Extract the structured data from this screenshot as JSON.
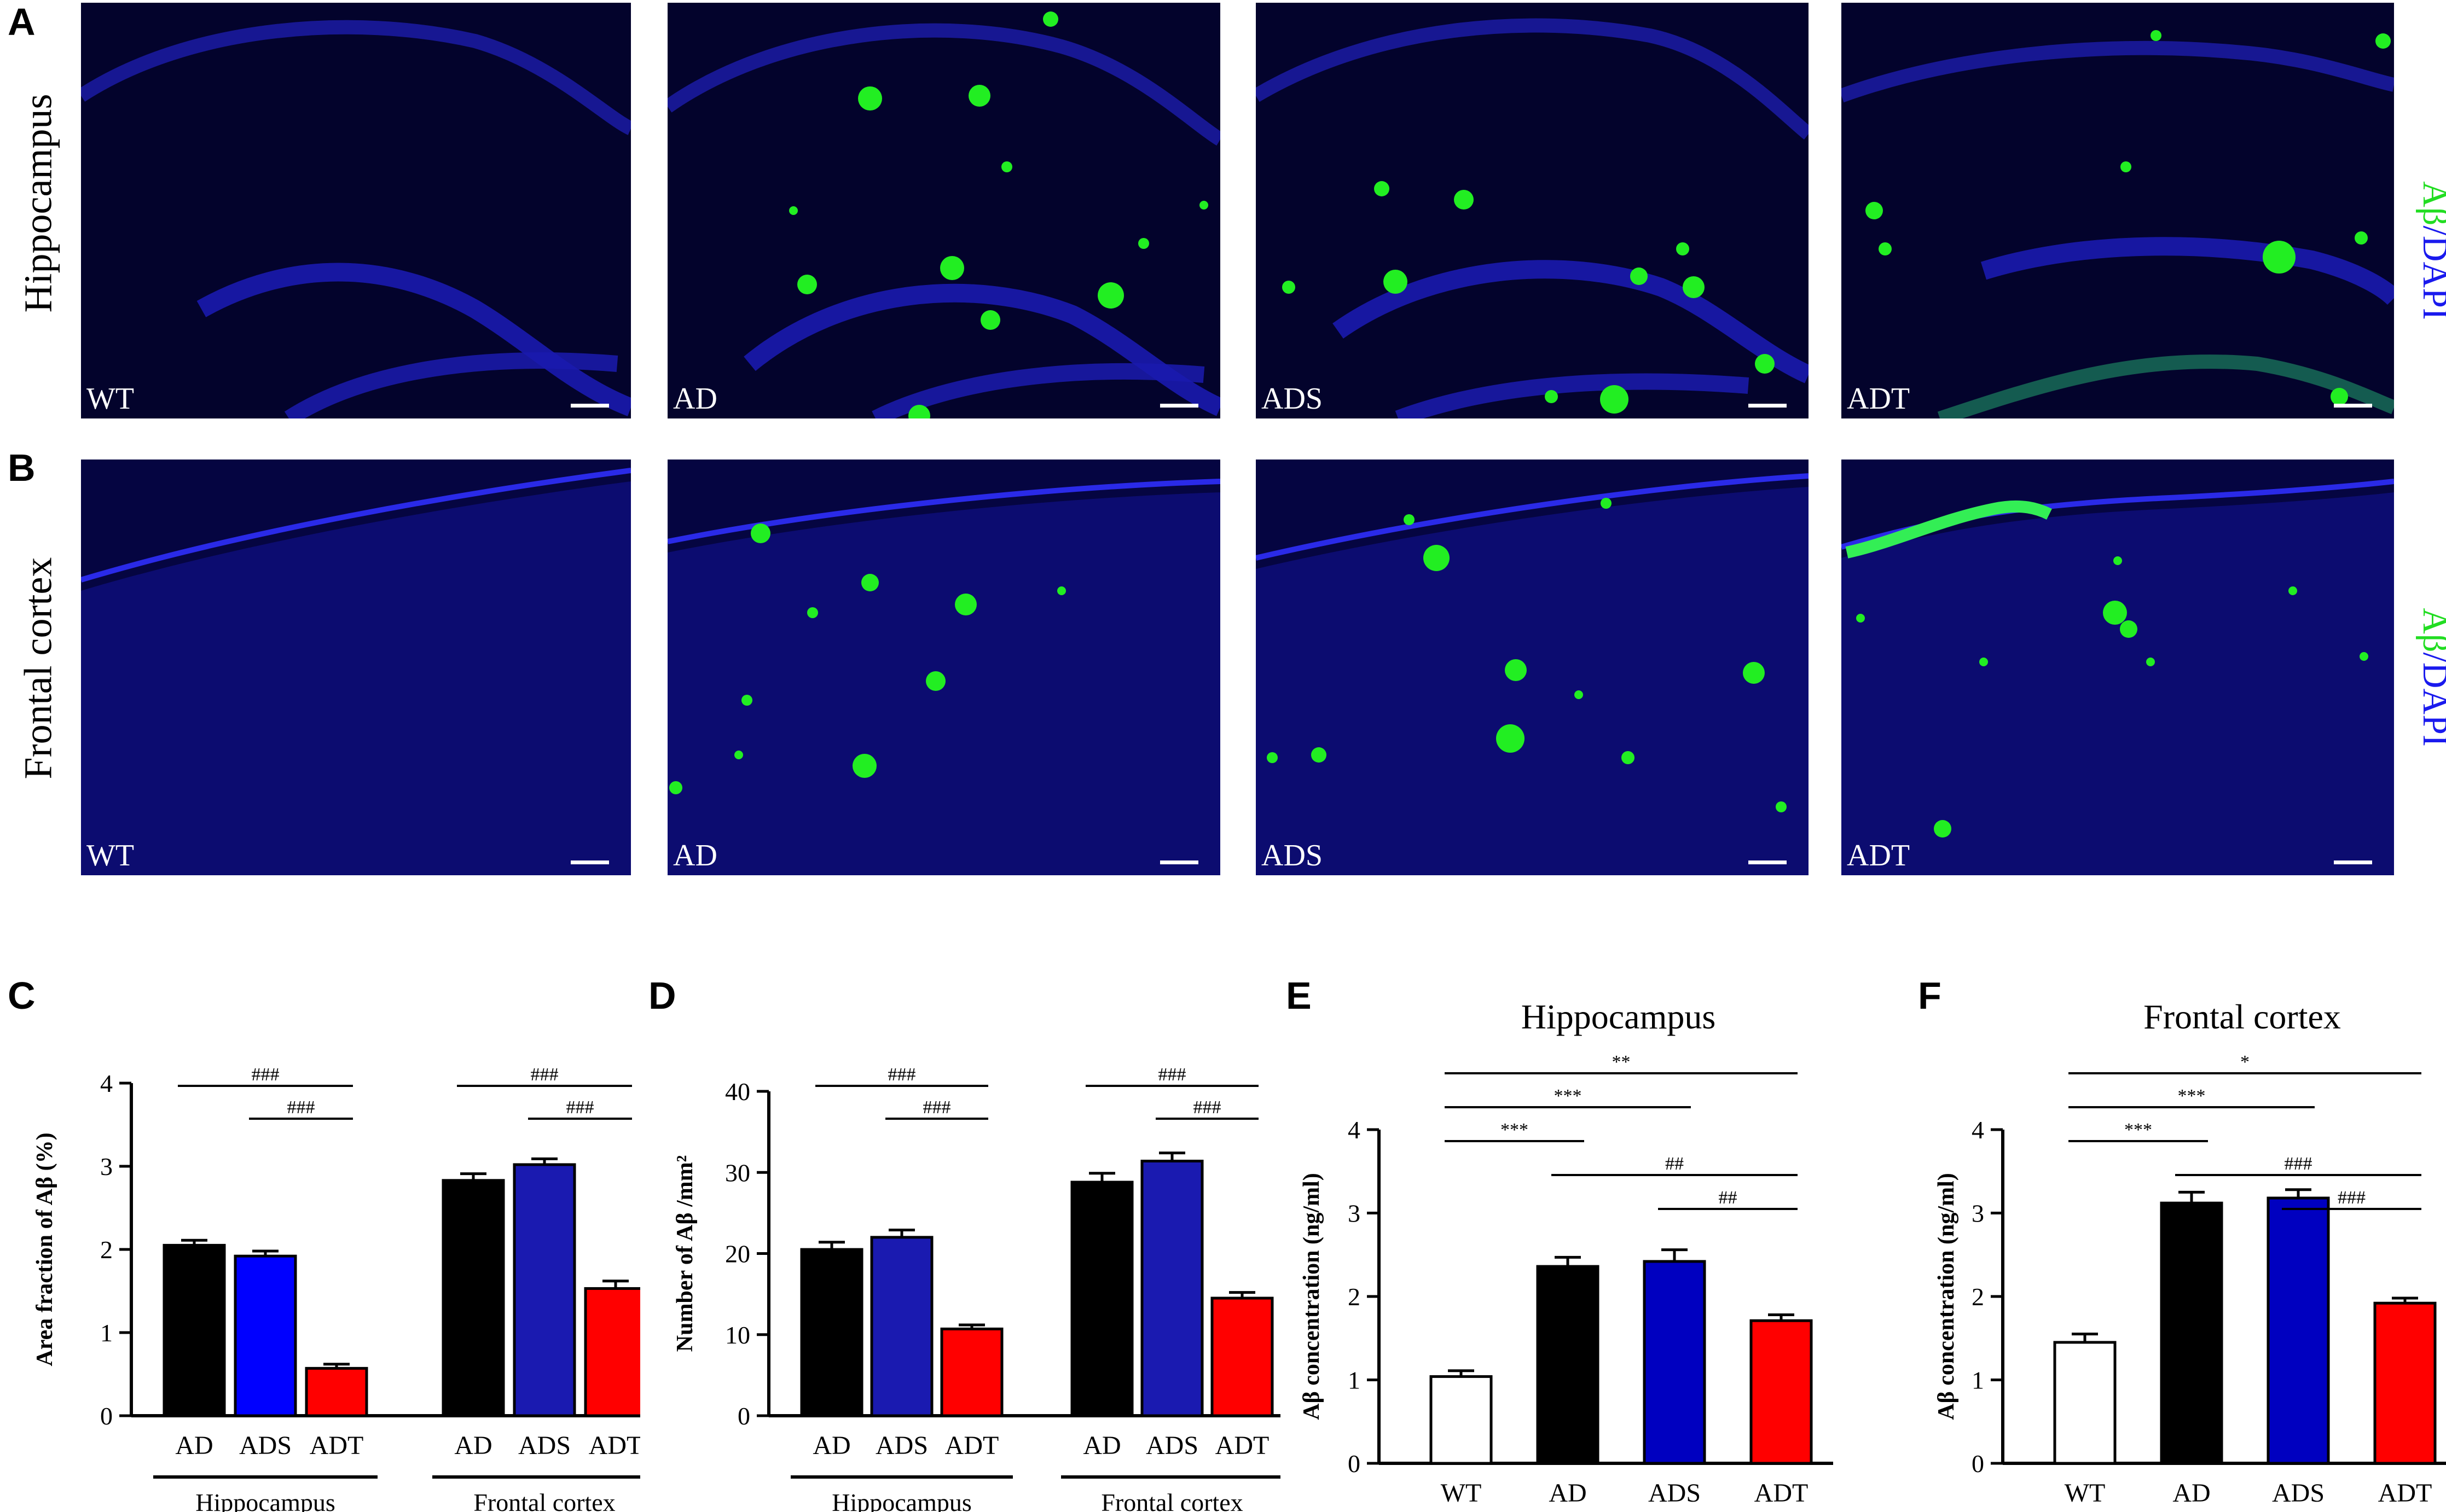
{
  "figure": {
    "panel_letters": {
      "A": "A",
      "B": "B",
      "C": "C",
      "D": "D",
      "E": "E",
      "F": "F"
    },
    "rows": [
      {
        "title": "Hippocampus",
        "stain_label": {
          "abeta": "Aβ",
          "sep": "/",
          "dapi": "DAPI"
        }
      },
      {
        "title": "Frontal cortex",
        "stain_label": {
          "abeta": "Aβ",
          "sep": "/",
          "dapi": "DAPI"
        }
      }
    ],
    "image_groups": [
      "WT",
      "AD",
      "ADS",
      "ADT"
    ],
    "colors": {
      "abeta": "#22dd22",
      "dapi": "#1a1aee",
      "AD": "#000000",
      "ADS": "#0000c0",
      "ADT": "#ff0000",
      "WT": "#ffffff"
    }
  },
  "chart_data": [
    {
      "id": "C",
      "type": "bar",
      "ylabel": "Area fraction of Aβ (%)",
      "ylim": [
        0,
        4
      ],
      "yticks": [
        "0",
        "1",
        "2",
        "3",
        "4"
      ],
      "categories": [
        "AD",
        "ADS",
        "ADT",
        "AD",
        "ADS",
        "ADT"
      ],
      "values": [
        2.05,
        1.92,
        0.57,
        2.83,
        3.02,
        1.53
      ],
      "errors": [
        0.06,
        0.06,
        0.05,
        0.08,
        0.07,
        0.09
      ],
      "bar_colors": [
        "#000000",
        "#0000ff",
        "#ff0000",
        "#000000",
        "#1a1ab0",
        "#ff0000"
      ],
      "groups": [
        {
          "label": "Hippocampus",
          "from": 0,
          "to": 2
        },
        {
          "label": "Frontal cortex",
          "from": 3,
          "to": 5
        }
      ],
      "annotations": [
        {
          "text": "###",
          "from": 0,
          "to": 2,
          "level": 0
        },
        {
          "text": "###",
          "from": 1,
          "to": 2,
          "level": 1
        },
        {
          "text": "###",
          "from": 3,
          "to": 5,
          "level": 0
        },
        {
          "text": "###",
          "from": 4,
          "to": 5,
          "level": 1
        }
      ]
    },
    {
      "id": "D",
      "type": "bar",
      "ylabel": "Number of Aβ /mm²",
      "ylim": [
        0,
        40
      ],
      "yticks": [
        "0",
        "10",
        "20",
        "30",
        "40"
      ],
      "categories": [
        "AD",
        "ADS",
        "ADT",
        "AD",
        "ADS",
        "ADT"
      ],
      "values": [
        20.5,
        22.0,
        10.7,
        28.8,
        31.4,
        14.5
      ],
      "errors": [
        0.9,
        0.9,
        0.5,
        1.1,
        1.0,
        0.7
      ],
      "bar_colors": [
        "#000000",
        "#1a1ab0",
        "#ff0000",
        "#000000",
        "#1a1ab0",
        "#ff0000"
      ],
      "groups": [
        {
          "label": "Hippocampus",
          "from": 0,
          "to": 2
        },
        {
          "label": "Frontal cortex",
          "from": 3,
          "to": 5
        }
      ],
      "annotations": [
        {
          "text": "###",
          "from": 0,
          "to": 2,
          "level": 0
        },
        {
          "text": "###",
          "from": 1,
          "to": 2,
          "level": 1
        },
        {
          "text": "###",
          "from": 3,
          "to": 5,
          "level": 0
        },
        {
          "text": "###",
          "from": 4,
          "to": 5,
          "level": 1
        }
      ]
    },
    {
      "id": "E",
      "type": "bar",
      "title": "Hippocampus",
      "ylabel": "Aβ concentration (ng/ml)",
      "ylim": [
        0,
        4
      ],
      "yticks": [
        "0",
        "1",
        "2",
        "3",
        "4"
      ],
      "categories": [
        "WT",
        "AD",
        "ADS",
        "ADT"
      ],
      "values": [
        1.04,
        2.36,
        2.42,
        1.71
      ],
      "errors": [
        0.07,
        0.11,
        0.14,
        0.07
      ],
      "bar_colors": [
        "#ffffff",
        "#000000",
        "#0000c0",
        "#ff0000"
      ],
      "annotations": [
        {
          "text": "**",
          "from": 0,
          "to": 3,
          "level": 0
        },
        {
          "text": "***",
          "from": 0,
          "to": 2,
          "level": 1
        },
        {
          "text": "***",
          "from": 0,
          "to": 1,
          "level": 2
        },
        {
          "text": "##",
          "from": 1,
          "to": 3,
          "level": 3
        },
        {
          "text": "##",
          "from": 2,
          "to": 3,
          "level": 4
        }
      ]
    },
    {
      "id": "F",
      "type": "bar",
      "title": "Frontal cortex",
      "ylabel": "Aβ concentration (ng/ml)",
      "ylim": [
        0,
        4
      ],
      "yticks": [
        "0",
        "1",
        "2",
        "3",
        "4"
      ],
      "categories": [
        "WT",
        "AD",
        "ADS",
        "ADT"
      ],
      "values": [
        1.45,
        3.12,
        3.18,
        1.92
      ],
      "errors": [
        0.1,
        0.13,
        0.1,
        0.06
      ],
      "bar_colors": [
        "#ffffff",
        "#000000",
        "#0000c0",
        "#ff0000"
      ],
      "annotations": [
        {
          "text": "*",
          "from": 0,
          "to": 3,
          "level": 0
        },
        {
          "text": "***",
          "from": 0,
          "to": 2,
          "level": 1
        },
        {
          "text": "***",
          "from": 0,
          "to": 1,
          "level": 2
        },
        {
          "text": "###",
          "from": 1,
          "to": 3,
          "level": 3
        },
        {
          "text": "###",
          "from": 2,
          "to": 3,
          "level": 4
        }
      ]
    }
  ]
}
